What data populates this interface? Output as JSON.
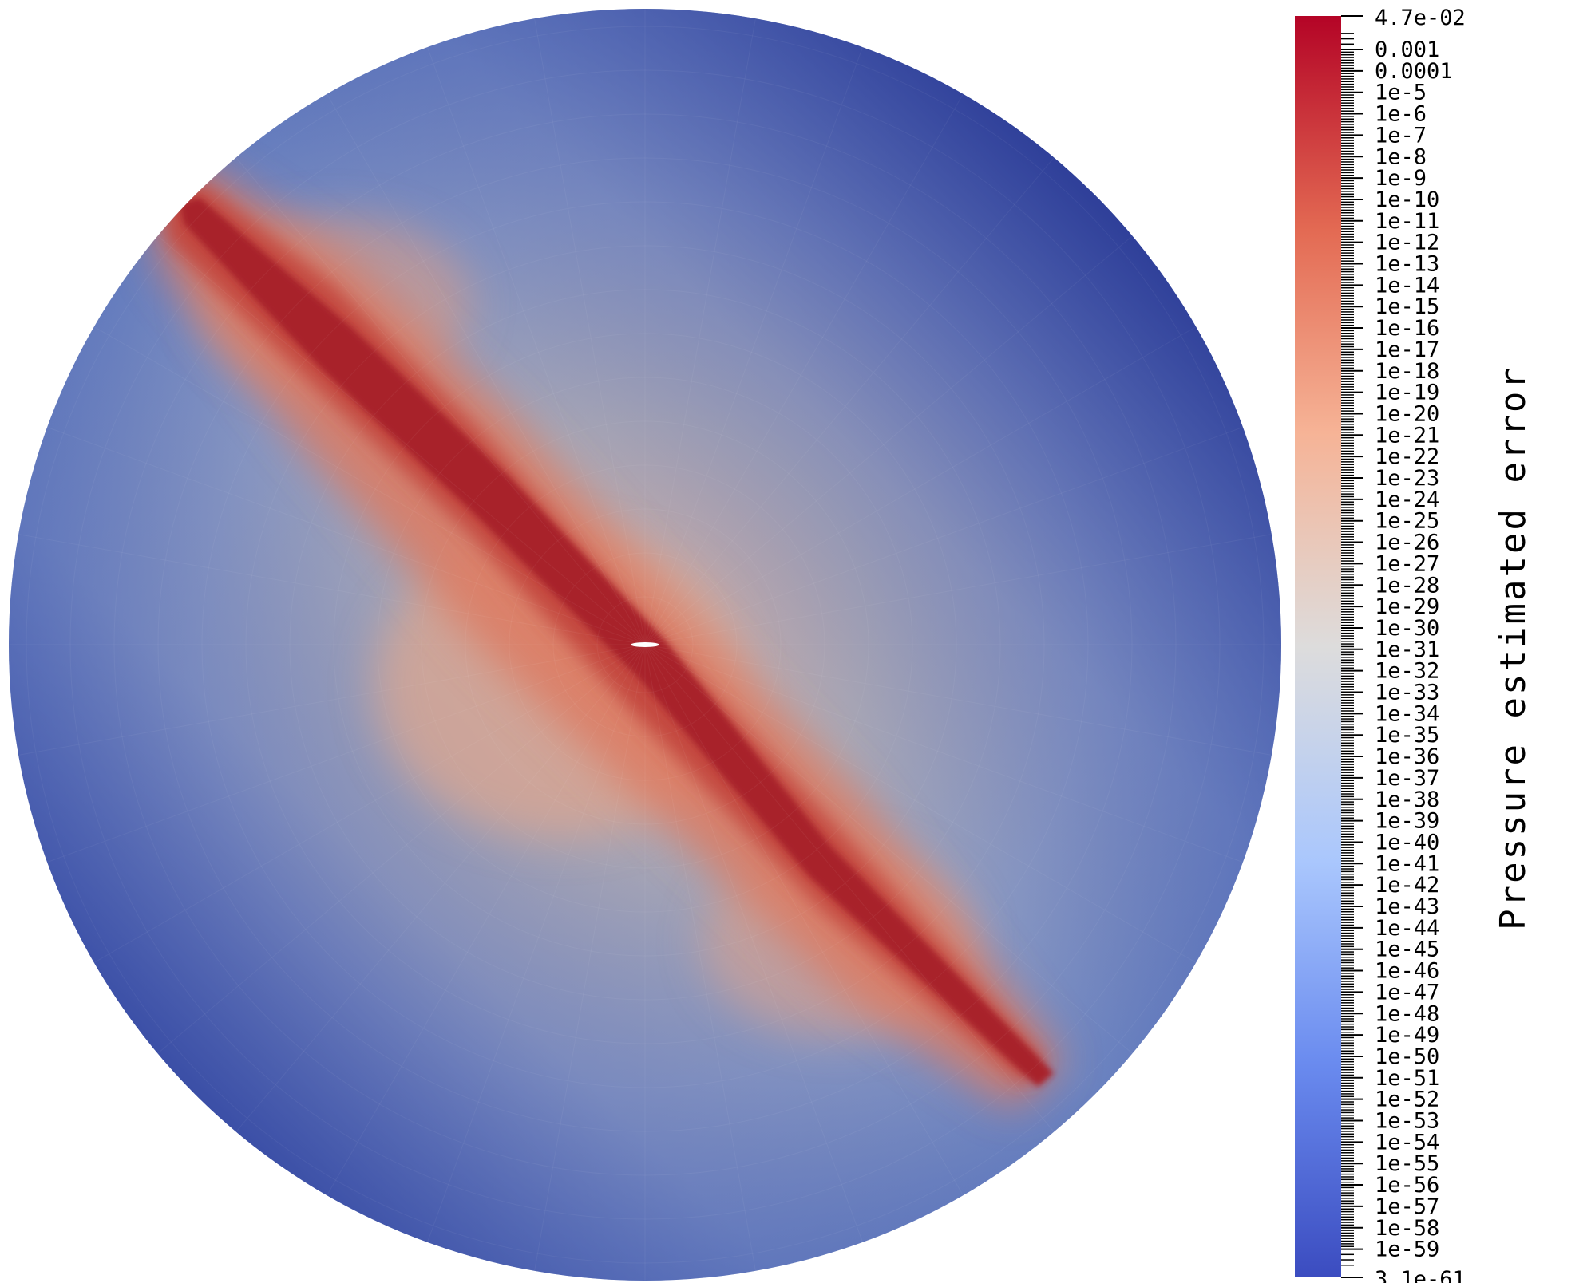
{
  "colorbar": {
    "title": "Pressure estimated error",
    "scale": "log",
    "range": [
      "3.1e-61",
      "4.7e-02"
    ],
    "max_label": "4.7e-02",
    "min_label": "3.1e-61",
    "tick_labels": [
      "0.001",
      "0.0001",
      "1e-5",
      "1e-6",
      "1e-7",
      "1e-8",
      "1e-9",
      "1e-10",
      "1e-11",
      "1e-12",
      "1e-13",
      "1e-14",
      "1e-15",
      "1e-16",
      "1e-17",
      "1e-18",
      "1e-19",
      "1e-20",
      "1e-21",
      "1e-22",
      "1e-23",
      "1e-24",
      "1e-25",
      "1e-26",
      "1e-27",
      "1e-28",
      "1e-29",
      "1e-30",
      "1e-31",
      "1e-32",
      "1e-33",
      "1e-34",
      "1e-35",
      "1e-36",
      "1e-37",
      "1e-38",
      "1e-39",
      "1e-40",
      "1e-41",
      "1e-42",
      "1e-43",
      "1e-44",
      "1e-45",
      "1e-46",
      "1e-47",
      "1e-48",
      "1e-49",
      "1e-50",
      "1e-51",
      "1e-52",
      "1e-53",
      "1e-54",
      "1e-55",
      "1e-56",
      "1e-57",
      "1e-58",
      "1e-59"
    ],
    "colormap": {
      "name": "cool-to-warm",
      "stops": [
        "#3b4cc0",
        "#6a8bef",
        "#aac7fd",
        "#dddcdc",
        "#f6b396",
        "#e36a53",
        "#b40426"
      ]
    }
  },
  "field": {
    "description_colors": {
      "background_field": "#8f9fc3",
      "low_region": "#3f53a8",
      "high_band": "#b01f2e"
    }
  }
}
